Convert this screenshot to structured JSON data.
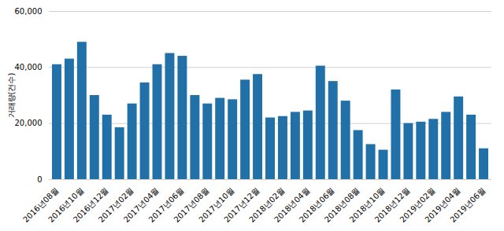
{
  "chart_data": {
    "type": "bar",
    "categories": [
      "2016년08월",
      null,
      "2016년10월",
      null,
      "2016년12월",
      null,
      "2017년02월",
      null,
      "2017년04월",
      null,
      "2017년06월",
      null,
      "2017년08월",
      null,
      "2017년10월",
      null,
      "2017년12월",
      null,
      "2018년02월",
      null,
      "2018년04월",
      null,
      "2018년06월",
      null,
      "2018년08월",
      null,
      "2018년10월",
      null,
      "2018년12월",
      null,
      "2019년02월",
      null,
      "2019년04월",
      null,
      "2019년06월"
    ],
    "values": [
      41000,
      43000,
      49000,
      30000,
      23000,
      18500,
      27000,
      34500,
      41000,
      45000,
      44000,
      30000,
      27000,
      29000,
      28500,
      35500,
      37500,
      22000,
      22500,
      24000,
      24500,
      40500,
      35000,
      28000,
      17500,
      12500,
      10500,
      32000,
      20000,
      20500,
      21500,
      24000,
      29500,
      23000,
      11000
    ],
    "color": "#2171a8",
    "ylabel": "거래량(건수)",
    "ylim": [
      0,
      60000
    ],
    "yticks": [
      0,
      {
        "value": 20000,
        "label": "20,000"
      },
      {
        "value": 40000,
        "label": "40,000"
      },
      {
        "value": 60000,
        "label": "60,000"
      }
    ],
    "grid": true
  }
}
